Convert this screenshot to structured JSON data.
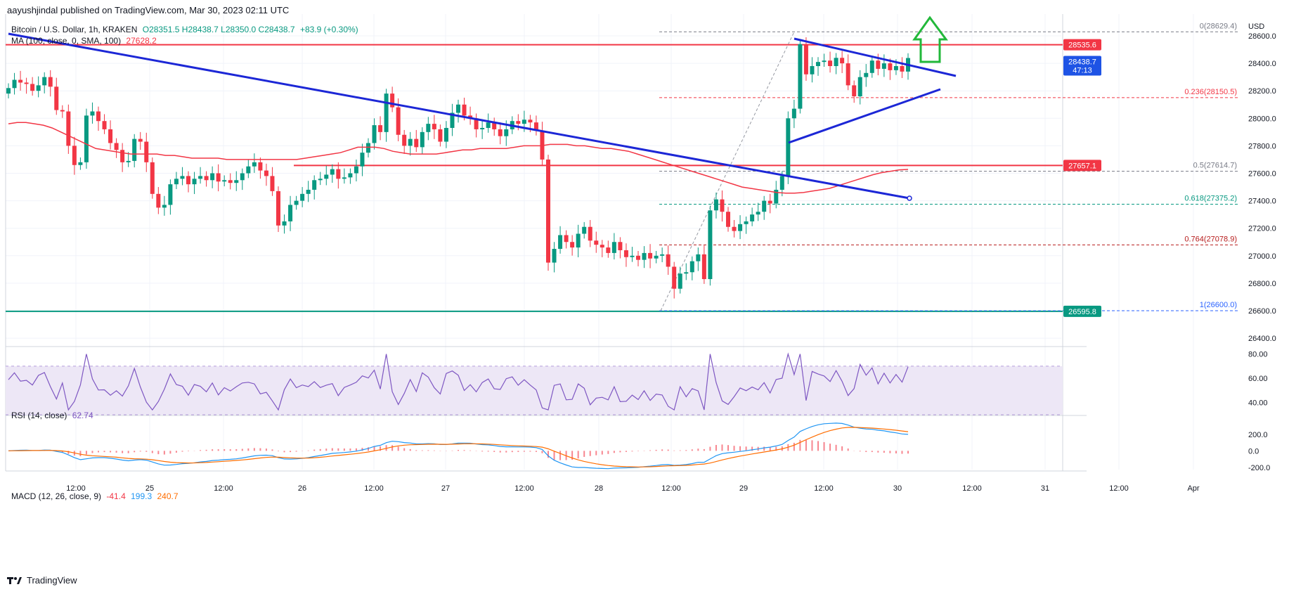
{
  "header": {
    "published": "aayushjindal published on TradingView.com, Mar 30, 2023 02:11 UTC"
  },
  "legend": {
    "symbol": "Bitcoin / U.S. Dollar, 1h, KRAKEN",
    "ohlc": "O28351.5  H28438.7  L28350.0  C28438.7",
    "change": "+83.9 (+0.30%)",
    "ma_label": "MA (100, close, 0, SMA, 100)",
    "ma_value": "27628.2"
  },
  "currency": "USD",
  "price_badges": [
    {
      "text": "28535.6",
      "color": "#f23645"
    },
    {
      "text": "28438.7",
      "color": "#1e53e5",
      "sub": "47:13"
    },
    {
      "text": "27657.1",
      "color": "#f23645"
    },
    {
      "text": "26595.8",
      "color": "#089981"
    }
  ],
  "rsi_panel": {
    "label": "RSI (14, close)",
    "value": "62.74",
    "ticks": [
      "80.00",
      "60.00",
      "40.00"
    ]
  },
  "macd_panel": {
    "label": "MACD (12, 26, close, 9)",
    "v1": "-41.4",
    "v2": "199.3",
    "v3": "240.7",
    "ticks": [
      "200.0",
      "0.0",
      "-200.0"
    ]
  },
  "footer": {
    "brand": "TradingView"
  },
  "colors": {
    "up": "#089981",
    "down": "#f23645",
    "ma": "#f23645",
    "trend": "#1c27d6",
    "rsi": "#7e57c2",
    "macd": "#2196f3",
    "signal": "#ff6d00"
  },
  "chart_data": {
    "type": "candlestick",
    "price_axis": {
      "min": 26300,
      "max": 28750,
      "ticks": [
        "28600.0",
        "28400.0",
        "28200.0",
        "28000.0",
        "27800.0",
        "27600.0",
        "27400.0",
        "27200.0",
        "27000.0",
        "26800.0",
        "26600.0",
        "26400.0"
      ]
    },
    "time_ticks": [
      "12:00",
      "25",
      "12:00",
      "26",
      "12:00",
      "27",
      "12:00",
      "28",
      "12:00",
      "29",
      "12:00",
      "30",
      "12:00",
      "31",
      "12:00",
      "Apr"
    ],
    "fib_levels": [
      {
        "label": "0(28629.4)",
        "price": 28629.4,
        "color": "#787b86"
      },
      {
        "label": "0.236(28150.5)",
        "price": 28150.5,
        "color": "#f23645"
      },
      {
        "label": "0.5(27614.7)",
        "price": 27614.7,
        "color": "#787b86"
      },
      {
        "label": "0.618(27375.2)",
        "price": 27375.2,
        "color": "#089981"
      },
      {
        "label": "0.764(27078.9)",
        "price": 27078.9,
        "color": "#b71c1c"
      },
      {
        "label": "1(26600.0)",
        "price": 26600.0,
        "color": "#2962ff"
      }
    ],
    "horizontal_lines": [
      {
        "price": 28535.6,
        "color": "#f23645"
      },
      {
        "price": 27657.1,
        "color": "#f23645"
      },
      {
        "price": 26595.8,
        "color": "#089981"
      }
    ],
    "candles_close": [
      28220,
      28280,
      28260,
      28250,
      28200,
      28240,
      28300,
      28230,
      28060,
      28050,
      27800,
      27660,
      27680,
      28020,
      28050,
      27980,
      27920,
      27820,
      27770,
      27680,
      27690,
      27850,
      27830,
      27680,
      27450,
      27350,
      27370,
      27520,
      27560,
      27580,
      27520,
      27560,
      27580,
      27550,
      27600,
      27540,
      27550,
      27530,
      27550,
      27600,
      27650,
      27680,
      27620,
      27580,
      27470,
      27220,
      27250,
      27370,
      27400,
      27450,
      27480,
      27550,
      27560,
      27590,
      27630,
      27560,
      27570,
      27600,
      27650,
      27750,
      27820,
      27950,
      27900,
      28180,
      28080,
      27880,
      27800,
      27850,
      27790,
      27900,
      27960,
      27920,
      27830,
      27930,
      28040,
      28100,
      28020,
      28000,
      27920,
      27930,
      27970,
      27920,
      27870,
      27920,
      27980,
      27960,
      27990,
      27970,
      27910,
      27700,
      26950,
      27050,
      27150,
      27100,
      27060,
      27160,
      27210,
      27110,
      27080,
      27060,
      27020,
      27100,
      27040,
      26990,
      27000,
      26970,
      27020,
      26980,
      27000,
      27010,
      26920,
      26760,
      26870,
      26880,
      26960,
      27010,
      26830,
      27330,
      27410,
      27320,
      27210,
      27180,
      27230,
      27250,
      27300,
      27320,
      27400,
      27380,
      27480,
      27580,
      28000,
      28070,
      28540,
      28320,
      28380,
      28410,
      28420,
      28380,
      28440,
      28400,
      28240,
      28160,
      28300,
      28330,
      28420,
      28360,
      28400,
      28350,
      28380,
      28340,
      28438.7
    ],
    "ma100": [
      27960,
      27970,
      27970,
      27960,
      27950,
      27930,
      27900,
      27870,
      27840,
      27810,
      27780,
      27770,
      27760,
      27750,
      27740,
      27740,
      27740,
      27740,
      27730,
      27730,
      27720,
      27710,
      27710,
      27710,
      27710,
      27700,
      27700,
      27700,
      27700,
      27700,
      27700,
      27700,
      27700,
      27700,
      27710,
      27720,
      27730,
      27740,
      27750,
      27770,
      27790,
      27790,
      27790,
      27780,
      27760,
      27750,
      27740,
      27740,
      27740,
      27740,
      27750,
      27760,
      27770,
      27770,
      27780,
      27780,
      27780,
      27780,
      27790,
      27800,
      27800,
      27800,
      27810,
      27810,
      27810,
      27800,
      27800,
      27790,
      27780,
      27780,
      27770,
      27760,
      27740,
      27720,
      27700,
      27680,
      27660,
      27640,
      27620,
      27600,
      27580,
      27560,
      27540,
      27520,
      27500,
      27490,
      27480,
      27470,
      27460,
      27455,
      27455,
      27460,
      27470,
      27480,
      27490,
      27510,
      27530,
      27550,
      27570,
      27590,
      27605,
      27615,
      27625,
      27628.2
    ]
  }
}
